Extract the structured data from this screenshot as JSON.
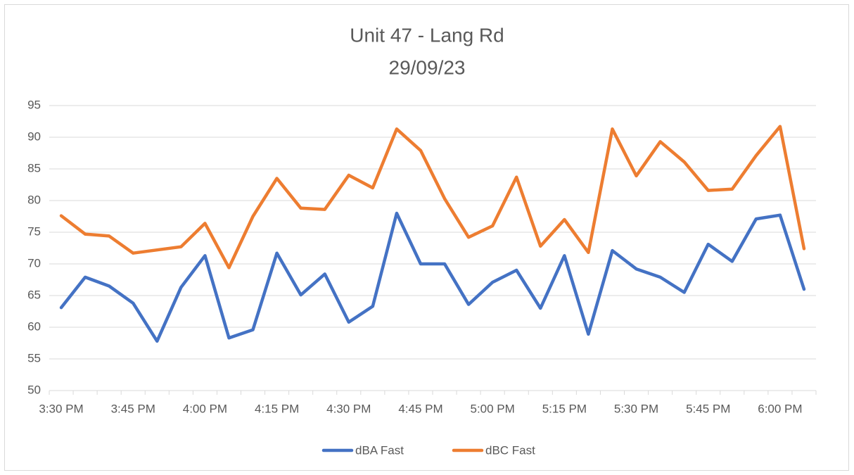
{
  "chart_data": {
    "type": "line",
    "title": "Unit 47 - Lang Rd",
    "subtitle": "29/09/23",
    "categories": [
      "3:30 PM",
      null,
      null,
      "3:45 PM",
      null,
      null,
      "4:00 PM",
      null,
      null,
      "4:15 PM",
      null,
      null,
      "4:30 PM",
      null,
      null,
      "4:45 PM",
      null,
      null,
      "5:00 PM",
      null,
      null,
      "5:15 PM",
      null,
      null,
      "5:30 PM",
      null,
      null,
      "5:45 PM",
      null,
      null,
      "6:00 PM",
      null
    ],
    "series": [
      {
        "name": "dBA Fast",
        "color": "#4472c4",
        "values": [
          63.1,
          67.9,
          66.5,
          63.8,
          57.8,
          66.3,
          71.3,
          58.3,
          59.6,
          71.7,
          65.1,
          68.4,
          60.8,
          63.3,
          78.0,
          70.0,
          70.0,
          63.6,
          67.1,
          69.0,
          63.0,
          71.3,
          58.9,
          72.1,
          69.2,
          67.9,
          65.5,
          73.1,
          70.4,
          77.1,
          77.7,
          66.0
        ]
      },
      {
        "name": "dBC Fast",
        "color": "#ed7d31",
        "values": [
          77.6,
          74.7,
          74.4,
          71.7,
          72.2,
          72.7,
          76.4,
          69.4,
          77.5,
          83.5,
          78.8,
          78.6,
          84.0,
          82.0,
          91.3,
          87.9,
          80.3,
          74.2,
          76.0,
          83.7,
          72.8,
          77.0,
          71.8,
          91.3,
          83.9,
          89.3,
          86.1,
          81.6,
          81.8,
          87.1,
          91.7,
          72.4
        ]
      }
    ],
    "ylim": [
      50,
      95
    ],
    "yticks": [
      50,
      55,
      60,
      65,
      70,
      75,
      80,
      85,
      90,
      95
    ],
    "grid": true,
    "legend": "bottom"
  }
}
